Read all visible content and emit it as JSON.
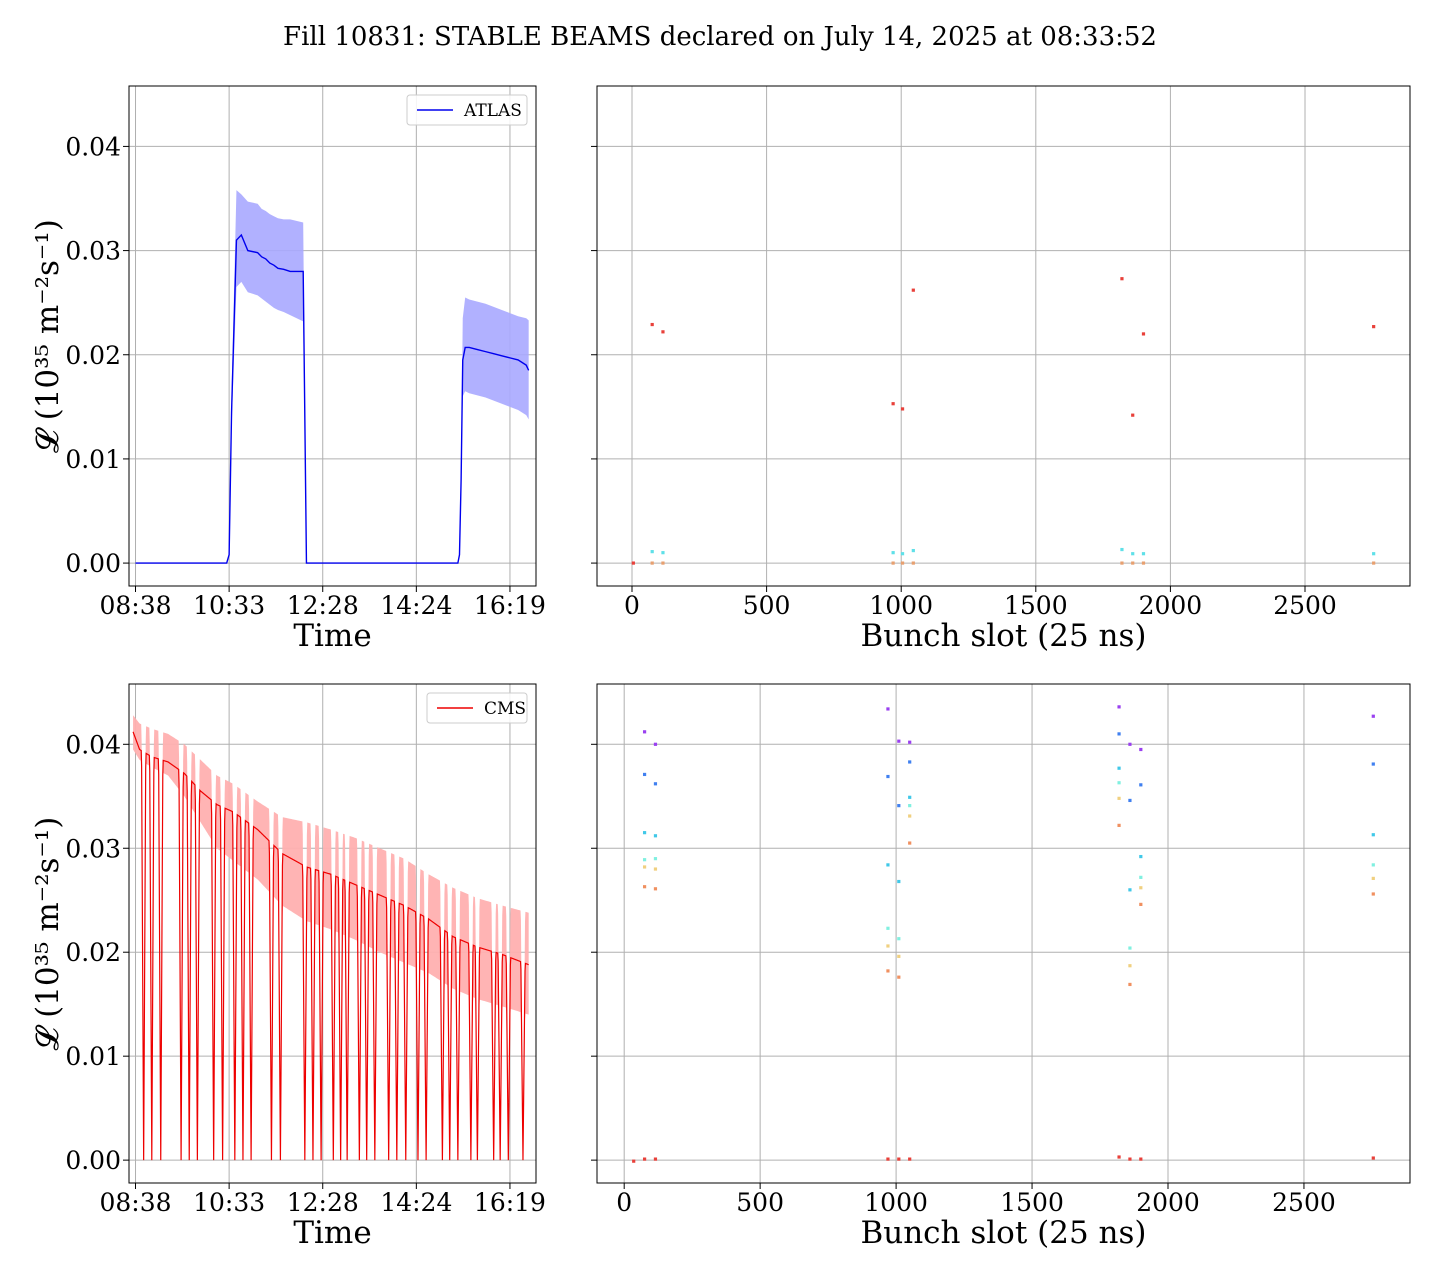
{
  "figure_title": "Fill 10831: STABLE BEAMS declared on July 14, 2025 at 08:33:52",
  "chart_data": [
    {
      "id": "atlas-time",
      "type": "line",
      "xlabel": "Time",
      "ylabel": "𝓛 (10³⁵ m⁻²s⁻¹)",
      "xticks": [
        "08:38",
        "10:33",
        "12:28",
        "14:24",
        "16:19"
      ],
      "yticks": [
        "0.00",
        "0.01",
        "0.02",
        "0.03",
        "0.04"
      ],
      "xlim_minutes_after_0838": [
        -8,
        492
      ],
      "ylim": [
        -0.0022,
        0.0458
      ],
      "grid": true,
      "legend": {
        "entry": "ATLAS",
        "placement": "top-right"
      },
      "color": "#0000ee",
      "band_color": "#a8a8ff",
      "series": [
        {
          "name": "ATLAS",
          "x_minutes": [
            0,
            100,
            112,
            115,
            118,
            124,
            130,
            138,
            150,
            155,
            160,
            165,
            170,
            175,
            182,
            190,
            206,
            210,
            211,
            240,
            340,
            360,
            396,
            398,
            400,
            402,
            405,
            410,
            420,
            430,
            440,
            450,
            460,
            470,
            480,
            483
          ],
          "y": [
            0,
            0,
            0,
            0.0008,
            0.0145,
            0.031,
            0.0315,
            0.03,
            0.0298,
            0.0294,
            0.0292,
            0.0288,
            0.0286,
            0.0283,
            0.0282,
            0.028,
            0.028,
            0,
            0,
            0,
            0,
            0,
            0,
            0.0008,
            0.008,
            0.0195,
            0.0207,
            0.0207,
            0.0205,
            0.0203,
            0.0201,
            0.0199,
            0.0197,
            0.0195,
            0.019,
            0.0185
          ],
          "y_upper": [
            0,
            0,
            0,
            0.0008,
            0.0165,
            0.0358,
            0.0354,
            0.0347,
            0.0345,
            0.034,
            0.0338,
            0.0335,
            0.0333,
            0.0331,
            0.033,
            0.033,
            0.0327,
            0,
            0,
            0,
            0,
            0,
            0,
            0.0008,
            0.009,
            0.0235,
            0.0255,
            0.0253,
            0.0251,
            0.0249,
            0.0246,
            0.0243,
            0.024,
            0.0237,
            0.0235,
            0.0233
          ],
          "y_lower": [
            0,
            0,
            0,
            0.0008,
            0.0128,
            0.0265,
            0.027,
            0.026,
            0.0257,
            0.0254,
            0.0251,
            0.0248,
            0.0245,
            0.0243,
            0.0241,
            0.0238,
            0.0232,
            0,
            0,
            0,
            0,
            0,
            0,
            0.0008,
            0.007,
            0.016,
            0.0165,
            0.0163,
            0.0161,
            0.0159,
            0.0156,
            0.0153,
            0.015,
            0.0147,
            0.0142,
            0.0138
          ]
        }
      ]
    },
    {
      "id": "atlas-bunch",
      "type": "scatter",
      "xlabel": "Bunch slot (25 ns)",
      "ylabel": "",
      "xticks": [
        0,
        500,
        1000,
        1500,
        2000,
        2500
      ],
      "yticks": [
        "0.00",
        "0.01",
        "0.02",
        "0.03",
        "0.04"
      ],
      "xlim": [
        -130,
        2890
      ],
      "ylim": [
        -0.0022,
        0.0458
      ],
      "grid": true,
      "points": [
        {
          "x": 5,
          "y": 0.0,
          "c": "#e8403a"
        },
        {
          "x": 75,
          "y": 0.0229,
          "c": "#e8403a"
        },
        {
          "x": 115,
          "y": 0.0222,
          "c": "#e8403a"
        },
        {
          "x": 75,
          "y": 0.0011,
          "c": "#5fe0e8"
        },
        {
          "x": 115,
          "y": 0.001,
          "c": "#5fe0e8"
        },
        {
          "x": 75,
          "y": 0.0,
          "c": "#e8a070"
        },
        {
          "x": 115,
          "y": 0.0,
          "c": "#e8a070"
        },
        {
          "x": 970,
          "y": 0.0153,
          "c": "#e8403a"
        },
        {
          "x": 1005,
          "y": 0.0148,
          "c": "#e8403a"
        },
        {
          "x": 1045,
          "y": 0.0262,
          "c": "#e8403a"
        },
        {
          "x": 970,
          "y": 0.001,
          "c": "#5fe0e8"
        },
        {
          "x": 1005,
          "y": 0.0009,
          "c": "#5fe0e8"
        },
        {
          "x": 1045,
          "y": 0.0012,
          "c": "#5fe0e8"
        },
        {
          "x": 970,
          "y": 0.0,
          "c": "#e8a070"
        },
        {
          "x": 1005,
          "y": 0.0,
          "c": "#e8a070"
        },
        {
          "x": 1045,
          "y": 0.0,
          "c": "#e8a070"
        },
        {
          "x": 1820,
          "y": 0.0273,
          "c": "#e8403a"
        },
        {
          "x": 1860,
          "y": 0.0142,
          "c": "#e8403a"
        },
        {
          "x": 1900,
          "y": 0.022,
          "c": "#e8403a"
        },
        {
          "x": 1820,
          "y": 0.0013,
          "c": "#5fe0e8"
        },
        {
          "x": 1860,
          "y": 0.0009,
          "c": "#5fe0e8"
        },
        {
          "x": 1900,
          "y": 0.0009,
          "c": "#5fe0e8"
        },
        {
          "x": 1820,
          "y": 0.0,
          "c": "#e8a070"
        },
        {
          "x": 1860,
          "y": 0.0,
          "c": "#e8a070"
        },
        {
          "x": 1900,
          "y": 0.0,
          "c": "#e8a070"
        },
        {
          "x": 2755,
          "y": 0.0227,
          "c": "#e8403a"
        },
        {
          "x": 2755,
          "y": 0.0009,
          "c": "#5fe0e8"
        },
        {
          "x": 2755,
          "y": 0.0,
          "c": "#e8a070"
        }
      ]
    },
    {
      "id": "cms-time",
      "type": "line",
      "xlabel": "Time",
      "ylabel": "𝓛 (10³⁵ m⁻²s⁻¹)",
      "xticks": [
        "08:38",
        "10:33",
        "12:28",
        "14:24",
        "16:19"
      ],
      "yticks": [
        "0.00",
        "0.01",
        "0.02",
        "0.03",
        "0.04"
      ],
      "xlim_minutes_after_0838": [
        -8,
        492
      ],
      "ylim": [
        -0.0022,
        0.0458
      ],
      "grid": true,
      "legend": {
        "entry": "CMS",
        "placement": "top-right"
      },
      "color": "#ee0000",
      "band_color": "#ffb0b0",
      "envelope": {
        "x_minutes": [
          -3,
          5,
          20,
          40,
          60,
          80,
          100,
          120,
          150,
          180,
          210,
          240,
          270,
          300,
          330,
          360,
          390,
          420,
          450,
          483
        ],
        "y": [
          0.0412,
          0.0395,
          0.0388,
          0.0383,
          0.0372,
          0.0355,
          0.0342,
          0.0335,
          0.0318,
          0.0295,
          0.0282,
          0.0275,
          0.0265,
          0.0255,
          0.0245,
          0.0232,
          0.0215,
          0.0205,
          0.0198,
          0.0188
        ],
        "y_upper": [
          0.0428,
          0.042,
          0.0415,
          0.041,
          0.04,
          0.0385,
          0.037,
          0.0362,
          0.0345,
          0.033,
          0.0325,
          0.0318,
          0.031,
          0.03,
          0.029,
          0.0275,
          0.0262,
          0.0252,
          0.0245,
          0.0238
        ],
        "y_lower": [
          0.0395,
          0.0385,
          0.0378,
          0.037,
          0.035,
          0.0325,
          0.03,
          0.0288,
          0.027,
          0.0245,
          0.023,
          0.0222,
          0.0212,
          0.02,
          0.019,
          0.018,
          0.0165,
          0.0155,
          0.0148,
          0.014
        ]
      },
      "dips_x_minutes": [
        10,
        20,
        31,
        56,
        66,
        76,
        96,
        107,
        122,
        132,
        142,
        167,
        178,
        208,
        218,
        228,
        243,
        252,
        260,
        275,
        284,
        294,
        311,
        321,
        332,
        347,
        357,
        377,
        386,
        396,
        412,
        420,
        440,
        448,
        458,
        476
      ]
    },
    {
      "id": "cms-bunch",
      "type": "scatter",
      "xlabel": "Bunch slot (25 ns)",
      "ylabel": "",
      "xticks": [
        0,
        500,
        1000,
        1500,
        2000,
        2500
      ],
      "yticks": [
        "0.00",
        "0.01",
        "0.02",
        "0.03",
        "0.04"
      ],
      "xlim": [
        -100,
        2890
      ],
      "ylim": [
        -0.0022,
        0.0458
      ],
      "grid": true,
      "points": [
        {
          "x": 35,
          "y": -0.0001,
          "c": "#e8403a"
        },
        {
          "x": 75,
          "y": 0.0001,
          "c": "#e8403a"
        },
        {
          "x": 115,
          "y": 0.0001,
          "c": "#e8403a"
        },
        {
          "x": 75,
          "y": 0.0412,
          "c": "#9a40f0"
        },
        {
          "x": 115,
          "y": 0.04,
          "c": "#9a40f0"
        },
        {
          "x": 75,
          "y": 0.0371,
          "c": "#4080f0"
        },
        {
          "x": 115,
          "y": 0.0362,
          "c": "#4080f0"
        },
        {
          "x": 75,
          "y": 0.0315,
          "c": "#40c8e8"
        },
        {
          "x": 115,
          "y": 0.0312,
          "c": "#40c8e8"
        },
        {
          "x": 75,
          "y": 0.0289,
          "c": "#80f0e0"
        },
        {
          "x": 115,
          "y": 0.029,
          "c": "#80f0e0"
        },
        {
          "x": 75,
          "y": 0.0282,
          "c": "#f0d080"
        },
        {
          "x": 115,
          "y": 0.028,
          "c": "#f0d080"
        },
        {
          "x": 75,
          "y": 0.0263,
          "c": "#f09060"
        },
        {
          "x": 115,
          "y": 0.0261,
          "c": "#f09060"
        },
        {
          "x": 970,
          "y": 0.0001,
          "c": "#e8403a"
        },
        {
          "x": 1010,
          "y": 0.0001,
          "c": "#e8403a"
        },
        {
          "x": 1050,
          "y": 0.0001,
          "c": "#e8403a"
        },
        {
          "x": 970,
          "y": 0.0434,
          "c": "#9a40f0"
        },
        {
          "x": 1010,
          "y": 0.0403,
          "c": "#9a40f0"
        },
        {
          "x": 1050,
          "y": 0.0402,
          "c": "#9a40f0"
        },
        {
          "x": 970,
          "y": 0.0369,
          "c": "#4080f0"
        },
        {
          "x": 1010,
          "y": 0.0341,
          "c": "#4080f0"
        },
        {
          "x": 1050,
          "y": 0.0383,
          "c": "#4080f0"
        },
        {
          "x": 970,
          "y": 0.0284,
          "c": "#40c8e8"
        },
        {
          "x": 1010,
          "y": 0.0268,
          "c": "#40c8e8"
        },
        {
          "x": 1050,
          "y": 0.0349,
          "c": "#40c8e8"
        },
        {
          "x": 970,
          "y": 0.0223,
          "c": "#80f0e0"
        },
        {
          "x": 1010,
          "y": 0.0213,
          "c": "#80f0e0"
        },
        {
          "x": 1050,
          "y": 0.0341,
          "c": "#80f0e0"
        },
        {
          "x": 970,
          "y": 0.0206,
          "c": "#f0d080"
        },
        {
          "x": 1010,
          "y": 0.0196,
          "c": "#f0d080"
        },
        {
          "x": 1050,
          "y": 0.0331,
          "c": "#f0d080"
        },
        {
          "x": 970,
          "y": 0.0182,
          "c": "#f09060"
        },
        {
          "x": 1010,
          "y": 0.0176,
          "c": "#f09060"
        },
        {
          "x": 1050,
          "y": 0.0305,
          "c": "#f09060"
        },
        {
          "x": 1820,
          "y": 0.0003,
          "c": "#e8403a"
        },
        {
          "x": 1860,
          "y": 0.0001,
          "c": "#e8403a"
        },
        {
          "x": 1900,
          "y": 0.0001,
          "c": "#e8403a"
        },
        {
          "x": 1820,
          "y": 0.0436,
          "c": "#9a40f0"
        },
        {
          "x": 1860,
          "y": 0.04,
          "c": "#9a40f0"
        },
        {
          "x": 1900,
          "y": 0.0395,
          "c": "#9a40f0"
        },
        {
          "x": 1820,
          "y": 0.041,
          "c": "#4080f0"
        },
        {
          "x": 1860,
          "y": 0.0346,
          "c": "#4080f0"
        },
        {
          "x": 1900,
          "y": 0.0361,
          "c": "#4080f0"
        },
        {
          "x": 1820,
          "y": 0.0377,
          "c": "#40c8e8"
        },
        {
          "x": 1860,
          "y": 0.026,
          "c": "#40c8e8"
        },
        {
          "x": 1900,
          "y": 0.0292,
          "c": "#40c8e8"
        },
        {
          "x": 1820,
          "y": 0.0363,
          "c": "#80f0e0"
        },
        {
          "x": 1860,
          "y": 0.0204,
          "c": "#80f0e0"
        },
        {
          "x": 1900,
          "y": 0.0272,
          "c": "#80f0e0"
        },
        {
          "x": 1820,
          "y": 0.0348,
          "c": "#f0d080"
        },
        {
          "x": 1860,
          "y": 0.0187,
          "c": "#f0d080"
        },
        {
          "x": 1900,
          "y": 0.0262,
          "c": "#f0d080"
        },
        {
          "x": 1820,
          "y": 0.0322,
          "c": "#f09060"
        },
        {
          "x": 1860,
          "y": 0.0169,
          "c": "#f09060"
        },
        {
          "x": 1900,
          "y": 0.0246,
          "c": "#f09060"
        },
        {
          "x": 2755,
          "y": 0.0002,
          "c": "#e8403a"
        },
        {
          "x": 2755,
          "y": 0.0427,
          "c": "#9a40f0"
        },
        {
          "x": 2755,
          "y": 0.0381,
          "c": "#4080f0"
        },
        {
          "x": 2755,
          "y": 0.0313,
          "c": "#40c8e8"
        },
        {
          "x": 2755,
          "y": 0.0284,
          "c": "#80f0e0"
        },
        {
          "x": 2755,
          "y": 0.0271,
          "c": "#f0d080"
        },
        {
          "x": 2755,
          "y": 0.0256,
          "c": "#f09060"
        }
      ]
    }
  ]
}
